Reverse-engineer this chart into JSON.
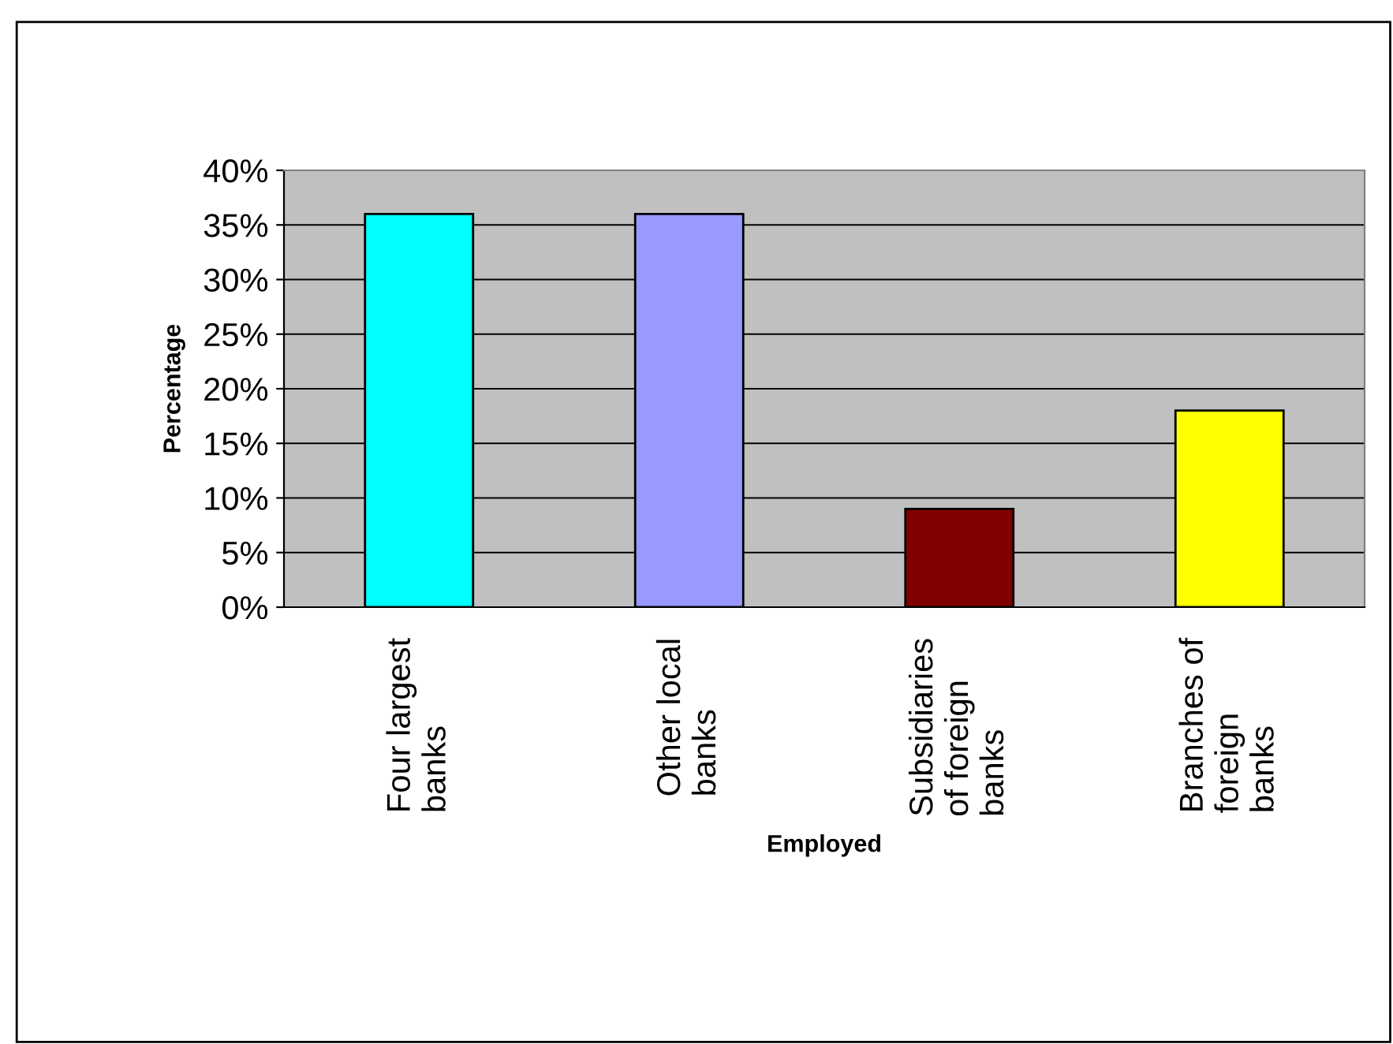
{
  "chart_data": {
    "type": "bar",
    "xlabel": "Employed",
    "ylabel": "Percentage",
    "categories": [
      "Four largest\nbanks",
      "Other local\nbanks",
      "Subsidiaries\nof foreign\nbanks",
      "Branches of\nforeign\nbanks"
    ],
    "values": [
      36,
      36,
      9,
      18
    ],
    "colors": [
      "#00ffff",
      "#9999ff",
      "#800000",
      "#ffff00"
    ],
    "ylim": [
      0,
      40
    ],
    "yticks": [
      {
        "value": 0,
        "label": "0%"
      },
      {
        "value": 5,
        "label": "5%"
      },
      {
        "value": 10,
        "label": "10%"
      },
      {
        "value": 15,
        "label": "15%"
      },
      {
        "value": 20,
        "label": "20%"
      },
      {
        "value": 25,
        "label": "25%"
      },
      {
        "value": 30,
        "label": "30%"
      },
      {
        "value": 35,
        "label": "35%"
      },
      {
        "value": 40,
        "label": "40%"
      }
    ],
    "grid": "y",
    "legend": false
  }
}
